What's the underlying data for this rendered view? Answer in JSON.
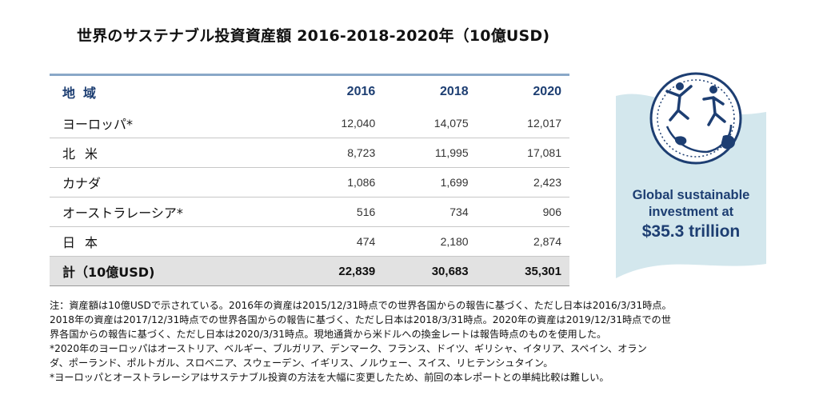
{
  "title": "世界のサステナブル投資資産額 2016-2018-2020年（10億USD)",
  "table": {
    "header": {
      "region": "地域",
      "years": [
        "2016",
        "2018",
        "2020"
      ]
    },
    "rows": [
      {
        "region": "ヨーロッパ*",
        "values": [
          "12,040",
          "14,075",
          "12,017"
        ]
      },
      {
        "region": "北米",
        "values": [
          "8,723",
          "11,995",
          "17,081"
        ]
      },
      {
        "region": "カナダ",
        "values": [
          "1,086",
          "1,699",
          "2,423"
        ]
      },
      {
        "region": "オーストラレーシア*",
        "values": [
          "516",
          "734",
          "906"
        ]
      },
      {
        "region": "日本",
        "values": [
          "474",
          "2,180",
          "2,874"
        ]
      }
    ],
    "total": {
      "region": "計（10億USD)",
      "values": [
        "22,839",
        "30,683",
        "35,301"
      ]
    }
  },
  "badge": {
    "line1": "Global sustainable",
    "line2": "investment at",
    "line3": "$35.3 trillion",
    "colors": {
      "text": "#1d3e72",
      "flag": "#d3e7ed",
      "globe": "#1d3e72"
    },
    "icon": "globe-with-people-icon"
  },
  "notes": [
    "注：資産額は10億USDで示されている。2016年の資産は2015/12/31時点での世界各国からの報告に基づく、ただし日本は2016/3/31時点。",
    "2018年の資産は2017/12/31時点での世界各国からの報告に基づく、ただし日本は2018/3/31時点。2020年の資産は2019/12/31時点での世",
    "界各国からの報告に基づく、ただし日本は2020/3/31時点。現地通貨から米ドルへの換金レートは報告時点のものを使用した。",
    "*2020年のヨーロッパはオーストリア、ベルギー、ブルガリア、デンマーク、フランス、ドイツ、ギリシャ、イタリア、スペイン、オラン",
    "ダ、ポーランド、ポルトガル、スロベニア、スウェーデン、イギリス、ノルウェー、スイス、リヒテンシュタイン。",
    "*ヨーロッパとオーストラレーシアはサステナブル投資の方法を大幅に変更したため、前回の本レポートとの単純比較は難しい。"
  ]
}
